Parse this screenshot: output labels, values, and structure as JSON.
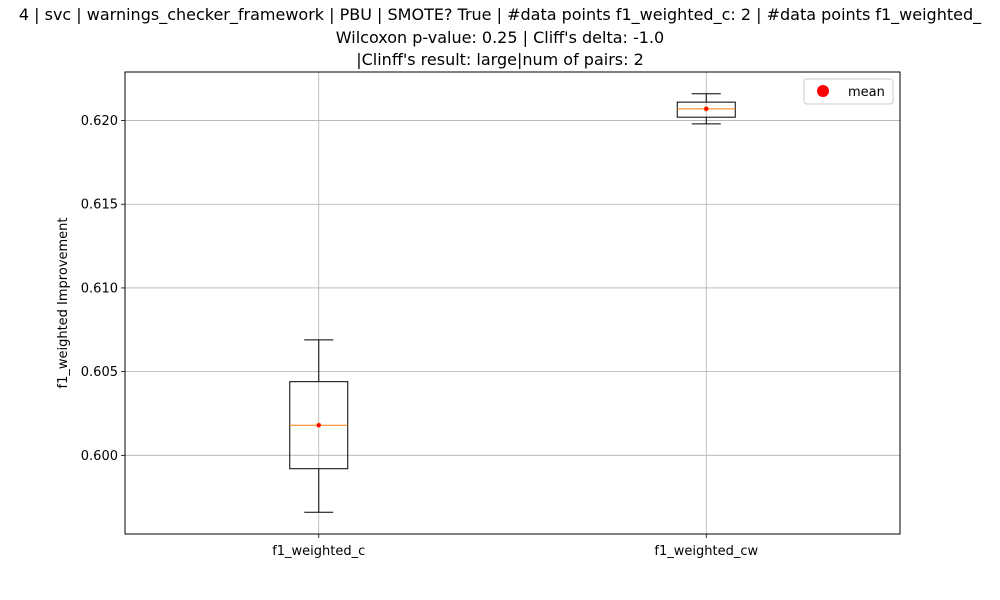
{
  "chart_data": {
    "type": "box",
    "title_lines": [
      "4 | svc | warnings_checker_framework | PBU | SMOTE? True | #data points f1_weighted_c: 2 | #data points f1_weighted_",
      "Wilcoxon p-value: 0.25 | Cliff's delta: -1.0",
      "|Clinff's result: large|num of pairs: 2"
    ],
    "ylabel": "f1_weighted Improvement",
    "xlabel": "",
    "categories": [
      "f1_weighted_c",
      "f1_weighted_cw"
    ],
    "ylim": [
      0.5953,
      0.6229
    ],
    "yticks": [
      0.6,
      0.605,
      0.61,
      0.615,
      0.62
    ],
    "ytick_labels": [
      "0.600",
      "0.605",
      "0.610",
      "0.615",
      "0.620"
    ],
    "grid": true,
    "legend": {
      "entries": [
        "mean"
      ],
      "placement": "top-right"
    },
    "boxes": [
      {
        "name": "f1_weighted_c",
        "whisker_low": 0.5966,
        "q1": 0.5992,
        "median": 0.6018,
        "q3": 0.6044,
        "whisker_high": 0.6069,
        "mean": 0.6018
      },
      {
        "name": "f1_weighted_cw",
        "whisker_low": 0.6198,
        "q1": 0.6202,
        "median": 0.6207,
        "q3": 0.6211,
        "whisker_high": 0.6216,
        "mean": 0.6207
      }
    ],
    "colors": {
      "box": "#000000",
      "median": "#ff7f0e",
      "mean": "#ff0000",
      "grid": "#b0b0b0"
    }
  }
}
